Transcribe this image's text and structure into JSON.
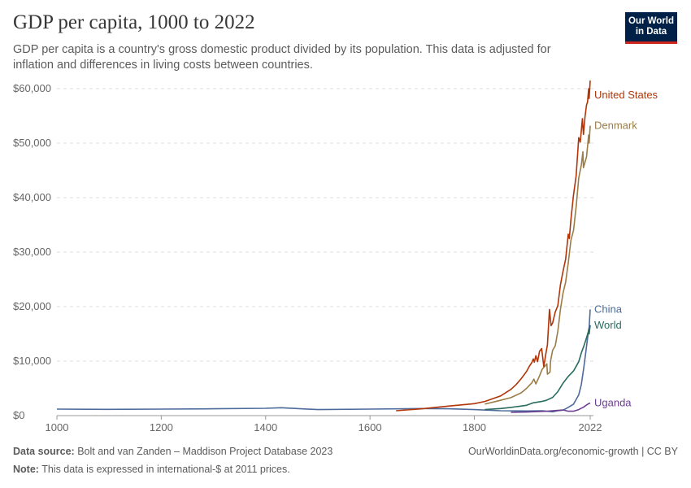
{
  "header": {
    "title": "GDP per capita, 1000 to 2022",
    "subtitle": "GDP per capita is a country's gross domestic product divided by its population. This data is adjusted for inflation and differences in living costs between countries."
  },
  "logo": {
    "line1": "Our World",
    "line2": "in Data",
    "bg_color": "#002147",
    "accent_color": "#ce261e"
  },
  "footer": {
    "source_label": "Data source:",
    "source_text": "Bolt and van Zanden – Maddison Project Database 2023",
    "note_label": "Note:",
    "note_text": "This data is expressed in international-$ at 2011 prices.",
    "link_text": "OurWorldinData.org/economic-growth | CC BY"
  },
  "chart_data": {
    "type": "line",
    "title": "GDP per capita, 1000 to 2022",
    "xlim": [
      1000,
      2022
    ],
    "ylim": [
      0,
      60000
    ],
    "x_ticks": [
      1000,
      1200,
      1400,
      1600,
      1800,
      2022
    ],
    "x_tick_labels": [
      "1000",
      "1200",
      "1400",
      "1600",
      "1800",
      "2022"
    ],
    "y_ticks": [
      0,
      10000,
      20000,
      30000,
      40000,
      50000,
      60000
    ],
    "y_tick_labels": [
      "$0",
      "$10,000",
      "$20,000",
      "$30,000",
      "$40,000",
      "$50,000",
      "$60,000"
    ],
    "grid": "horizontal-dashed",
    "legend": "inline-right",
    "series": [
      {
        "name": "United States",
        "color": "#b13507",
        "points": [
          [
            1650,
            900
          ],
          [
            1700,
            1250
          ],
          [
            1750,
            1750
          ],
          [
            1800,
            2200
          ],
          [
            1820,
            2600
          ],
          [
            1850,
            3600
          ],
          [
            1870,
            4800
          ],
          [
            1880,
            5700
          ],
          [
            1890,
            6800
          ],
          [
            1900,
            8100
          ],
          [
            1905,
            9000
          ],
          [
            1910,
            9700
          ],
          [
            1913,
            10400
          ],
          [
            1915,
            9800
          ],
          [
            1918,
            11000
          ],
          [
            1921,
            9900
          ],
          [
            1925,
            11800
          ],
          [
            1929,
            12300
          ],
          [
            1933,
            9000
          ],
          [
            1937,
            11300
          ],
          [
            1940,
            13000
          ],
          [
            1944,
            19500
          ],
          [
            1947,
            16500
          ],
          [
            1950,
            17000
          ],
          [
            1955,
            19000
          ],
          [
            1960,
            20200
          ],
          [
            1965,
            24000
          ],
          [
            1970,
            26500
          ],
          [
            1975,
            28700
          ],
          [
            1980,
            33300
          ],
          [
            1982,
            32500
          ],
          [
            1985,
            36000
          ],
          [
            1990,
            40500
          ],
          [
            1995,
            44000
          ],
          [
            2000,
            51000
          ],
          [
            2003,
            50200
          ],
          [
            2007,
            54500
          ],
          [
            2009,
            51600
          ],
          [
            2012,
            54800
          ],
          [
            2015,
            57000
          ],
          [
            2017,
            57600
          ],
          [
            2019,
            60000
          ],
          [
            2020,
            58200
          ],
          [
            2022,
            61500
          ]
        ]
      },
      {
        "name": "Denmark",
        "color": "#9a7c47",
        "points": [
          [
            1820,
            2100
          ],
          [
            1850,
            2800
          ],
          [
            1870,
            3300
          ],
          [
            1890,
            4200
          ],
          [
            1900,
            5000
          ],
          [
            1910,
            6000
          ],
          [
            1914,
            6700
          ],
          [
            1918,
            5800
          ],
          [
            1925,
            7300
          ],
          [
            1930,
            8500
          ],
          [
            1939,
            9500
          ],
          [
            1940,
            7600
          ],
          [
            1945,
            8000
          ],
          [
            1946,
            10000
          ],
          [
            1950,
            12000
          ],
          [
            1955,
            12800
          ],
          [
            1960,
            15500
          ],
          [
            1965,
            19500
          ],
          [
            1970,
            22500
          ],
          [
            1975,
            24500
          ],
          [
            1980,
            28000
          ],
          [
            1985,
            32200
          ],
          [
            1990,
            34000
          ],
          [
            1995,
            38300
          ],
          [
            2000,
            43600
          ],
          [
            2005,
            46000
          ],
          [
            2008,
            48400
          ],
          [
            2009,
            45500
          ],
          [
            2015,
            47500
          ],
          [
            2019,
            51500
          ],
          [
            2020,
            50000
          ],
          [
            2022,
            53200
          ]
        ]
      },
      {
        "name": "China",
        "color": "#4c6a9c",
        "points": [
          [
            1000,
            1200
          ],
          [
            1100,
            1150
          ],
          [
            1200,
            1200
          ],
          [
            1300,
            1250
          ],
          [
            1400,
            1350
          ],
          [
            1430,
            1450
          ],
          [
            1500,
            1100
          ],
          [
            1600,
            1200
          ],
          [
            1700,
            1300
          ],
          [
            1750,
            1250
          ],
          [
            1800,
            1100
          ],
          [
            1850,
            900
          ],
          [
            1900,
            850
          ],
          [
            1930,
            900
          ],
          [
            1950,
            700
          ],
          [
            1960,
            900
          ],
          [
            1970,
            1000
          ],
          [
            1978,
            1400
          ],
          [
            1990,
            2100
          ],
          [
            2000,
            3800
          ],
          [
            2005,
            5700
          ],
          [
            2010,
            9000
          ],
          [
            2015,
            12700
          ],
          [
            2019,
            15800
          ],
          [
            2020,
            16200
          ],
          [
            2022,
            19500
          ]
        ]
      },
      {
        "name": "World",
        "color": "#286b5f",
        "points": [
          [
            1820,
            1100
          ],
          [
            1850,
            1300
          ],
          [
            1870,
            1500
          ],
          [
            1900,
            1900
          ],
          [
            1913,
            2350
          ],
          [
            1929,
            2600
          ],
          [
            1938,
            2800
          ],
          [
            1950,
            3350
          ],
          [
            1960,
            4400
          ],
          [
            1970,
            5950
          ],
          [
            1980,
            7200
          ],
          [
            1990,
            8200
          ],
          [
            2000,
            9900
          ],
          [
            2005,
            11500
          ],
          [
            2010,
            12800
          ],
          [
            2015,
            14300
          ],
          [
            2019,
            15600
          ],
          [
            2020,
            15000
          ],
          [
            2022,
            16600
          ]
        ]
      },
      {
        "name": "Uganda",
        "color": "#6d3e91",
        "points": [
          [
            1870,
            600
          ],
          [
            1900,
            650
          ],
          [
            1940,
            800
          ],
          [
            1960,
            950
          ],
          [
            1970,
            1050
          ],
          [
            1980,
            800
          ],
          [
            1990,
            800
          ],
          [
            2000,
            1100
          ],
          [
            2010,
            1600
          ],
          [
            2015,
            1950
          ],
          [
            2019,
            2200
          ],
          [
            2022,
            2300
          ]
        ]
      }
    ]
  }
}
